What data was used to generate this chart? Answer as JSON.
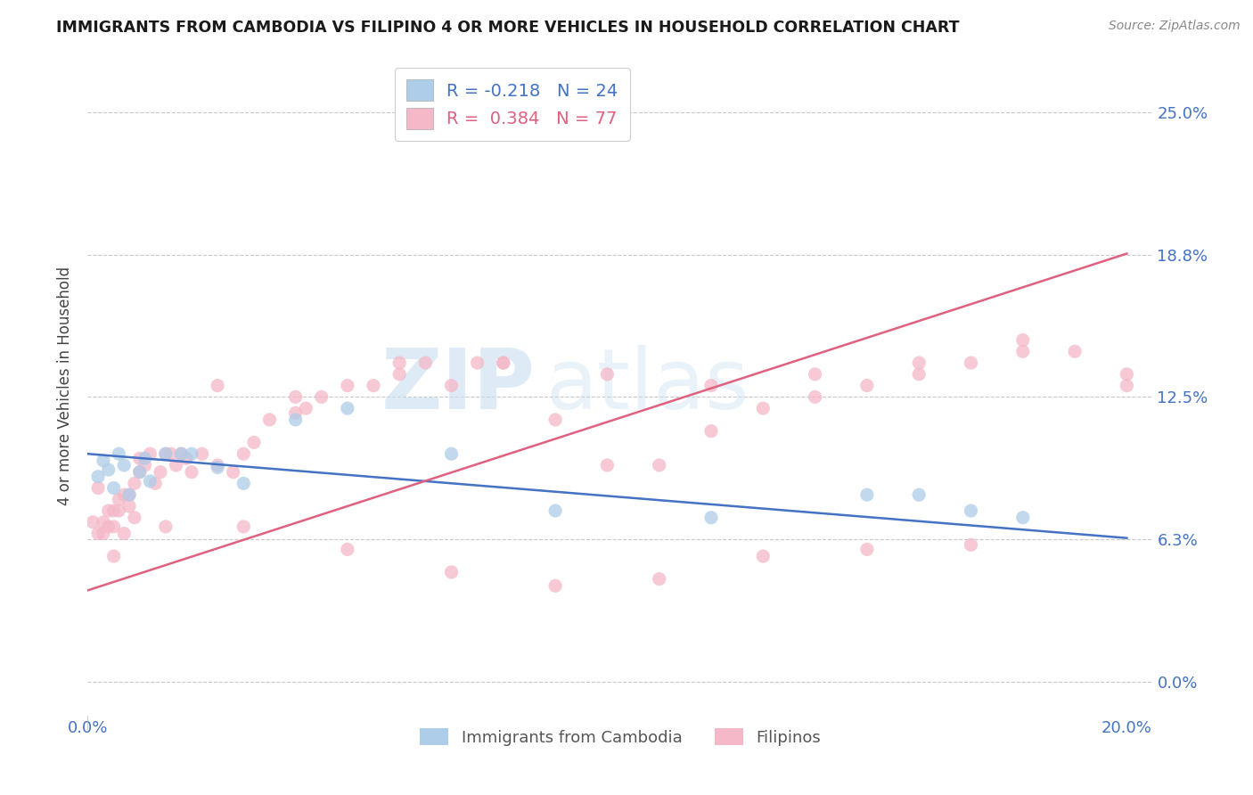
{
  "title": "IMMIGRANTS FROM CAMBODIA VS FILIPINO 4 OR MORE VEHICLES IN HOUSEHOLD CORRELATION CHART",
  "source": "Source: ZipAtlas.com",
  "ylabel": "4 or more Vehicles in Household",
  "xlim": [
    0.0,
    0.205
  ],
  "ylim": [
    -0.015,
    0.275
  ],
  "yticks": [
    0.0,
    0.0625,
    0.125,
    0.1875,
    0.25
  ],
  "ytick_labels": [
    "0.0%",
    "6.3%",
    "12.5%",
    "18.8%",
    "25.0%"
  ],
  "xticks": [
    0.0,
    0.2
  ],
  "xtick_labels": [
    "0.0%",
    "20.0%"
  ],
  "watermark_zip": "ZIP",
  "watermark_atlas": "atlas",
  "legend_cambodia": "Immigrants from Cambodia",
  "legend_filipino": "Filipinos",
  "R_cambodia": -0.218,
  "N_cambodia": 24,
  "R_filipino": 0.384,
  "N_filipino": 77,
  "color_cambodia": "#aecde8",
  "color_filipino": "#f4b8c8",
  "line_color_cambodia": "#4472c4",
  "line_color_filipino": "#e06080",
  "cam_line_x0": 0.0,
  "cam_line_y0": 0.1,
  "cam_line_x1": 0.2,
  "cam_line_y1": 0.063,
  "fil_line_x0": 0.0,
  "fil_line_y0": 0.04,
  "fil_line_x1": 0.2,
  "fil_line_y1": 0.188,
  "cambodia_x": [
    0.002,
    0.003,
    0.004,
    0.005,
    0.006,
    0.007,
    0.008,
    0.01,
    0.011,
    0.012,
    0.015,
    0.018,
    0.02,
    0.025,
    0.03,
    0.04,
    0.05,
    0.07,
    0.09,
    0.12,
    0.15,
    0.16,
    0.17,
    0.18
  ],
  "cambodia_y": [
    0.09,
    0.097,
    0.093,
    0.085,
    0.1,
    0.095,
    0.082,
    0.092,
    0.098,
    0.088,
    0.1,
    0.1,
    0.1,
    0.094,
    0.087,
    0.115,
    0.12,
    0.1,
    0.075,
    0.072,
    0.082,
    0.082,
    0.075,
    0.072
  ],
  "filipino_x": [
    0.001,
    0.002,
    0.002,
    0.003,
    0.003,
    0.004,
    0.004,
    0.005,
    0.005,
    0.006,
    0.006,
    0.007,
    0.007,
    0.008,
    0.008,
    0.009,
    0.009,
    0.01,
    0.01,
    0.011,
    0.012,
    0.013,
    0.014,
    0.015,
    0.016,
    0.017,
    0.018,
    0.019,
    0.02,
    0.022,
    0.025,
    0.028,
    0.03,
    0.032,
    0.035,
    0.04,
    0.042,
    0.045,
    0.05,
    0.055,
    0.06,
    0.065,
    0.07,
    0.075,
    0.08,
    0.09,
    0.1,
    0.11,
    0.12,
    0.13,
    0.14,
    0.15,
    0.16,
    0.17,
    0.18,
    0.19,
    0.2,
    0.025,
    0.04,
    0.06,
    0.08,
    0.1,
    0.12,
    0.14,
    0.16,
    0.18,
    0.2,
    0.005,
    0.015,
    0.03,
    0.05,
    0.07,
    0.09,
    0.11,
    0.13,
    0.15,
    0.17
  ],
  "filipino_y": [
    0.07,
    0.085,
    0.065,
    0.065,
    0.07,
    0.075,
    0.068,
    0.075,
    0.068,
    0.08,
    0.075,
    0.065,
    0.082,
    0.077,
    0.082,
    0.087,
    0.072,
    0.092,
    0.098,
    0.095,
    0.1,
    0.087,
    0.092,
    0.1,
    0.1,
    0.095,
    0.1,
    0.098,
    0.092,
    0.1,
    0.095,
    0.092,
    0.1,
    0.105,
    0.115,
    0.118,
    0.12,
    0.125,
    0.13,
    0.13,
    0.135,
    0.14,
    0.13,
    0.14,
    0.14,
    0.115,
    0.095,
    0.095,
    0.11,
    0.12,
    0.125,
    0.13,
    0.135,
    0.14,
    0.15,
    0.145,
    0.135,
    0.13,
    0.125,
    0.14,
    0.14,
    0.135,
    0.13,
    0.135,
    0.14,
    0.145,
    0.13,
    0.055,
    0.068,
    0.068,
    0.058,
    0.048,
    0.042,
    0.045,
    0.055,
    0.058,
    0.06
  ]
}
